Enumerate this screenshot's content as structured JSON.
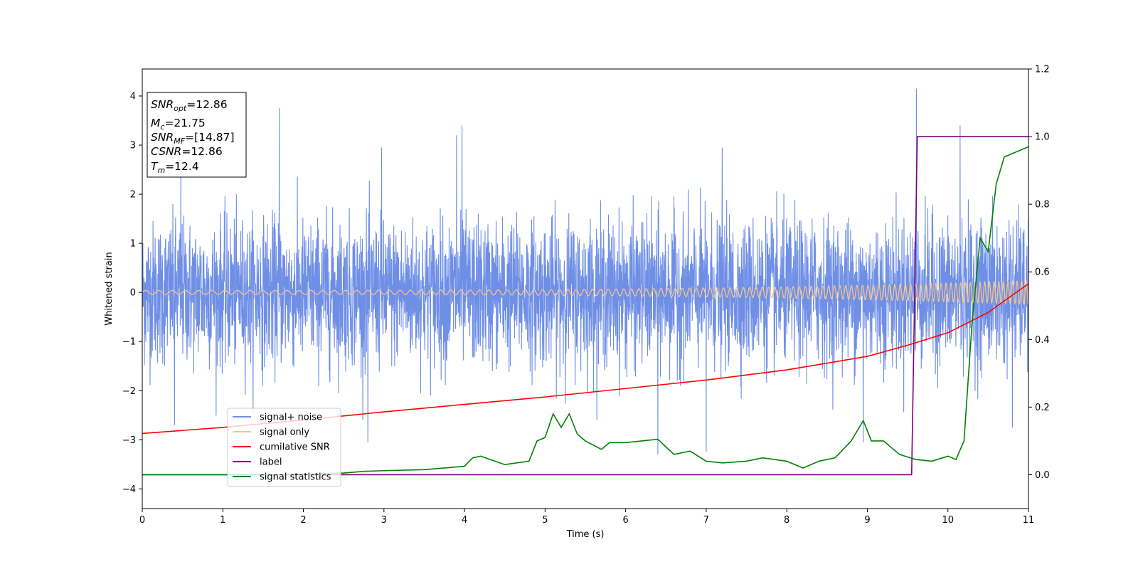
{
  "chart_data": {
    "type": "line",
    "xlabel": "Time (s)",
    "ylabel": "Whitened strain",
    "xlim": [
      0,
      11
    ],
    "ylim": [
      -4.4,
      4.55
    ],
    "ylim_right": [
      -0.1,
      1.2
    ],
    "x_ticks": [
      "0",
      "1",
      "2",
      "3",
      "4",
      "5",
      "6",
      "7",
      "8",
      "9",
      "10",
      "11"
    ],
    "y_ticks": [
      "−4",
      "−3",
      "−2",
      "−1",
      "0",
      "1",
      "2",
      "3",
      "4"
    ],
    "y2_ticks": [
      "0.0",
      "0.2",
      "0.4",
      "0.6",
      "0.8",
      "1.0",
      "1.2"
    ],
    "info_box": {
      "snr_opt": {
        "sym": "SNR",
        "sub": "opt",
        "value": "=12.86"
      },
      "mc": {
        "sym": "M",
        "sub": "c",
        "value": "=21.75"
      },
      "snr_mf": {
        "sym": "SNR",
        "sub": "MF",
        "value": "=[14.87]"
      },
      "csnr": {
        "sym": "CSNR",
        "sub": "",
        "value": "=12.86"
      },
      "tm": {
        "sym": "T",
        "sub": "m",
        "value": "=12.4"
      }
    },
    "legend": {
      "placement": "lower-left",
      "entries": [
        {
          "label": "signal+ noise",
          "color": "#6f8fe6"
        },
        {
          "label": "signal only",
          "color": "#f5c48c"
        },
        {
          "label": "cumilative SNR",
          "color": "#ff0000"
        },
        {
          "label": "label",
          "color": "#800080"
        },
        {
          "label": "signal statistics",
          "color": "#008000"
        }
      ]
    },
    "series": [
      {
        "name": "signal+ noise",
        "axis": "left",
        "color": "#6f8fe6",
        "kind": "noise",
        "typical_range": [
          -1.6,
          1.6
        ],
        "peaks": [
          {
            "x": 1.7,
            "y": 3.75
          },
          {
            "x": 3.97,
            "y": 3.4
          },
          {
            "x": 9.61,
            "y": 4.15
          },
          {
            "x": 10.15,
            "y": 3.4
          },
          {
            "x": 0.48,
            "y": 2.9
          },
          {
            "x": 2.97,
            "y": 2.95
          },
          {
            "x": 7.2,
            "y": 2.95
          },
          {
            "x": 3.9,
            "y": 3.2
          }
        ],
        "troughs": [
          {
            "x": 6.4,
            "y": -3.3
          },
          {
            "x": 2.8,
            "y": -3.05
          },
          {
            "x": 7.0,
            "y": -3.25
          },
          {
            "x": 8.95,
            "y": -3.05
          },
          {
            "x": 0.4,
            "y": -2.7
          },
          {
            "x": 10.8,
            "y": -2.75
          }
        ]
      },
      {
        "name": "signal only",
        "axis": "left",
        "color": "#f5c48c",
        "kind": "chirp",
        "amplitude_start": 0.04,
        "amplitude_end": 0.24,
        "x_end": 11.0
      },
      {
        "name": "cumilative SNR",
        "axis": "right",
        "color": "#ff0000",
        "x": [
          0,
          1,
          2,
          3,
          4,
          5,
          6,
          7,
          8,
          9,
          9.5,
          10,
          10.5,
          11
        ],
        "y": [
          0.122,
          0.14,
          0.162,
          0.186,
          0.208,
          0.23,
          0.255,
          0.28,
          0.31,
          0.35,
          0.383,
          0.42,
          0.48,
          0.565
        ]
      },
      {
        "name": "label",
        "axis": "right",
        "color": "#800080",
        "x": [
          0,
          9.55,
          9.62,
          11
        ],
        "y": [
          0.0,
          0.0,
          1.0,
          1.0
        ]
      },
      {
        "name": "signal statistics",
        "axis": "right",
        "color": "#008000",
        "x": [
          0,
          0.5,
          1.0,
          1.5,
          2.0,
          2.5,
          2.75,
          3.0,
          3.5,
          4.0,
          4.1,
          4.2,
          4.5,
          4.8,
          4.9,
          5.0,
          5.1,
          5.2,
          5.3,
          5.4,
          5.5,
          5.7,
          5.8,
          6.0,
          6.2,
          6.4,
          6.6,
          6.8,
          7.0,
          7.2,
          7.5,
          7.7,
          8.0,
          8.2,
          8.4,
          8.6,
          8.8,
          8.95,
          9.05,
          9.2,
          9.4,
          9.6,
          9.8,
          10.0,
          10.1,
          10.2,
          10.3,
          10.4,
          10.5,
          10.6,
          10.7,
          10.8,
          10.9,
          11.0
        ],
        "y": [
          0.0,
          0.0,
          0.0,
          0.0,
          0.002,
          0.005,
          0.01,
          0.012,
          0.015,
          0.025,
          0.05,
          0.055,
          0.03,
          0.04,
          0.1,
          0.11,
          0.18,
          0.14,
          0.18,
          0.12,
          0.1,
          0.075,
          0.095,
          0.095,
          0.1,
          0.105,
          0.06,
          0.07,
          0.04,
          0.035,
          0.04,
          0.05,
          0.04,
          0.02,
          0.04,
          0.05,
          0.1,
          0.16,
          0.1,
          0.1,
          0.06,
          0.045,
          0.04,
          0.055,
          0.045,
          0.1,
          0.45,
          0.7,
          0.66,
          0.86,
          0.94,
          0.95,
          0.96,
          0.97
        ]
      }
    ]
  }
}
